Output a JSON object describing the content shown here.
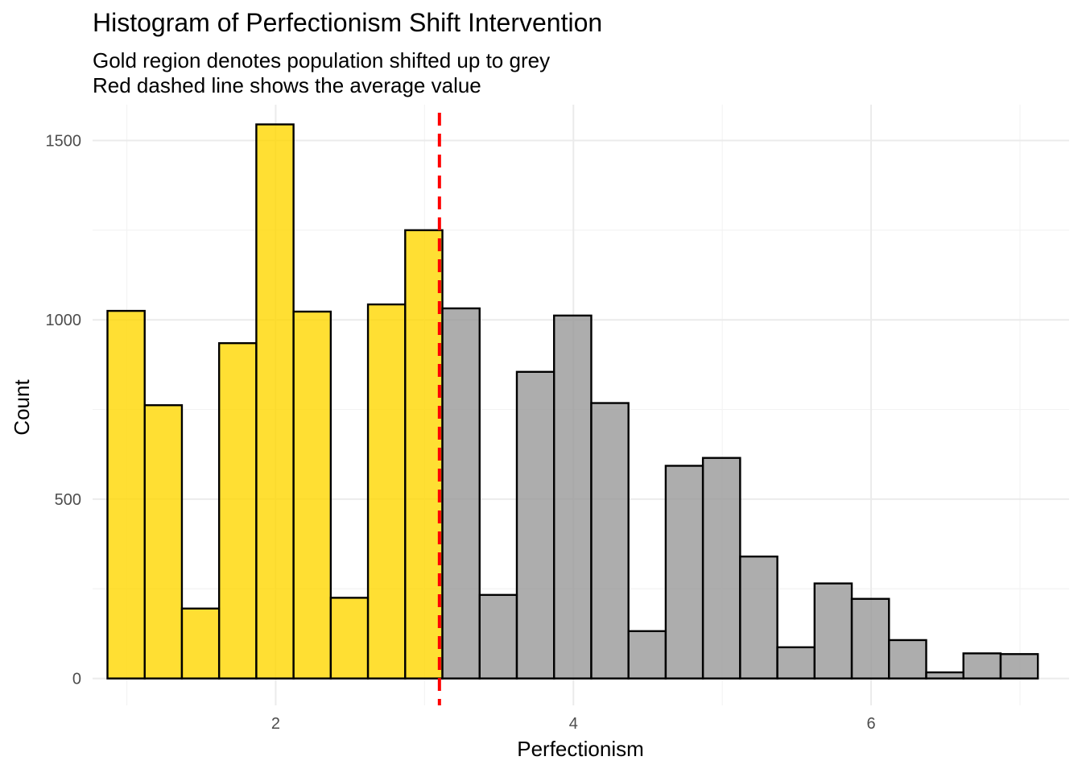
{
  "chart_data": {
    "type": "bar",
    "title": "Histogram of Perfectionism Shift Intervention",
    "subtitle_lines": [
      "Gold region denotes population shifted up to grey",
      "Red dashed line shows the average value"
    ],
    "xlabel": "Perfectionism",
    "ylabel": "Count",
    "xlim": [
      0.77,
      7.33
    ],
    "ylim": [
      -75,
      1600
    ],
    "x_ticks": [
      2,
      4,
      6
    ],
    "y_ticks": [
      0,
      500,
      1000,
      1500
    ],
    "x_minor_ticks": [
      1,
      3,
      5,
      7
    ],
    "y_minor_ticks": [
      250,
      750,
      1250
    ],
    "grid": true,
    "legend": "none",
    "bin_width": 0.25,
    "mean_value": 3.1,
    "colors": {
      "gold": "#ffd700",
      "grey": "#999999",
      "mean_line": "#ff0000"
    },
    "bins": [
      {
        "start": 0.87,
        "end": 1.12,
        "count": 1025,
        "group": "gold"
      },
      {
        "start": 1.12,
        "end": 1.37,
        "count": 762,
        "group": "gold"
      },
      {
        "start": 1.37,
        "end": 1.62,
        "count": 195,
        "group": "gold"
      },
      {
        "start": 1.62,
        "end": 1.87,
        "count": 935,
        "group": "gold"
      },
      {
        "start": 1.87,
        "end": 2.12,
        "count": 1545,
        "group": "gold"
      },
      {
        "start": 2.12,
        "end": 2.37,
        "count": 1023,
        "group": "gold"
      },
      {
        "start": 2.37,
        "end": 2.62,
        "count": 225,
        "group": "gold"
      },
      {
        "start": 2.62,
        "end": 2.87,
        "count": 1043,
        "group": "gold"
      },
      {
        "start": 2.87,
        "end": 3.12,
        "count": 1250,
        "group": "gold"
      },
      {
        "start": 3.12,
        "end": 3.37,
        "count": 1032,
        "group": "grey"
      },
      {
        "start": 3.37,
        "end": 3.62,
        "count": 233,
        "group": "grey"
      },
      {
        "start": 3.62,
        "end": 3.87,
        "count": 855,
        "group": "grey"
      },
      {
        "start": 3.87,
        "end": 4.12,
        "count": 1012,
        "group": "grey"
      },
      {
        "start": 4.12,
        "end": 4.37,
        "count": 768,
        "group": "grey"
      },
      {
        "start": 4.37,
        "end": 4.62,
        "count": 132,
        "group": "grey"
      },
      {
        "start": 4.62,
        "end": 4.87,
        "count": 593,
        "group": "grey"
      },
      {
        "start": 4.87,
        "end": 5.12,
        "count": 615,
        "group": "grey"
      },
      {
        "start": 5.12,
        "end": 5.37,
        "count": 340,
        "group": "grey"
      },
      {
        "start": 5.37,
        "end": 5.62,
        "count": 87,
        "group": "grey"
      },
      {
        "start": 5.62,
        "end": 5.87,
        "count": 265,
        "group": "grey"
      },
      {
        "start": 5.87,
        "end": 6.12,
        "count": 222,
        "group": "grey"
      },
      {
        "start": 6.12,
        "end": 6.37,
        "count": 107,
        "group": "grey"
      },
      {
        "start": 6.37,
        "end": 6.62,
        "count": 17,
        "group": "grey"
      },
      {
        "start": 6.62,
        "end": 6.87,
        "count": 70,
        "group": "grey"
      },
      {
        "start": 6.87,
        "end": 7.12,
        "count": 68,
        "group": "grey"
      }
    ]
  }
}
